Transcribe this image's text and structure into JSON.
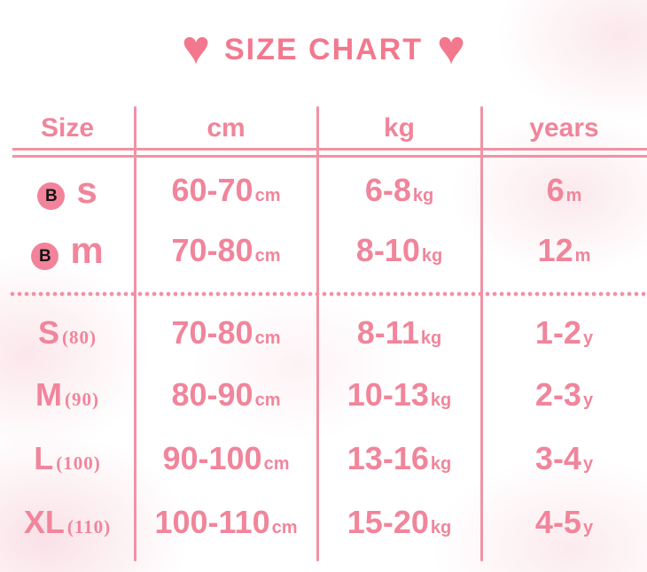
{
  "title": {
    "text": "SIZE CHART",
    "heart_left": "♥",
    "heart_right": "♥"
  },
  "colors": {
    "pink_text": "#f0859b",
    "heart_pink": "#f3788e",
    "line_pink": "#f192a5",
    "badge_pink": "#f2839a",
    "badge_letter": "#141414"
  },
  "table": {
    "headers": [
      "Size",
      "cm",
      "kg",
      "years"
    ],
    "rows": [
      {
        "group": "baby",
        "badge": "B",
        "size": "s",
        "size_note": "",
        "cm": "60-70",
        "cm_unit": "cm",
        "kg": "6-8",
        "kg_unit": "kg",
        "age": "6",
        "age_unit": "m"
      },
      {
        "group": "baby",
        "badge": "B",
        "size": "m",
        "size_note": "",
        "cm": "70-80",
        "cm_unit": "cm",
        "kg": "8-10",
        "kg_unit": "kg",
        "age": "12",
        "age_unit": "m"
      },
      {
        "group": "kids",
        "size": "S",
        "size_note": "(80)",
        "cm": "70-80",
        "cm_unit": "cm",
        "kg": "8-11",
        "kg_unit": "kg",
        "age": "1-2",
        "age_unit": "y"
      },
      {
        "group": "kids",
        "size": "M",
        "size_note": "(90)",
        "cm": "80-90",
        "cm_unit": "cm",
        "kg": "10-13",
        "kg_unit": "kg",
        "age": "2-3",
        "age_unit": "y"
      },
      {
        "group": "kids",
        "size": "L",
        "size_note": "(100)",
        "cm": "90-100",
        "cm_unit": "cm",
        "kg": "13-16",
        "kg_unit": "kg",
        "age": "3-4",
        "age_unit": "y"
      },
      {
        "group": "kids",
        "size": "XL",
        "size_note": "(110)",
        "cm": "100-110",
        "cm_unit": "cm",
        "kg": "15-20",
        "kg_unit": "kg",
        "age": "4-5",
        "age_unit": "y"
      }
    ]
  },
  "chart_data": {
    "type": "table",
    "title": "SIZE CHART",
    "columns": [
      "Size",
      "cm",
      "kg",
      "years"
    ],
    "rows": [
      [
        "B s",
        "60-70cm",
        "6-8kg",
        "6m"
      ],
      [
        "B m",
        "70-80cm",
        "8-10kg",
        "12m"
      ],
      [
        "S (80)",
        "70-80cm",
        "8-11kg",
        "1-2y"
      ],
      [
        "M (90)",
        "80-90cm",
        "10-13kg",
        "2-3y"
      ],
      [
        "L (100)",
        "90-100cm",
        "13-16kg",
        "3-4y"
      ],
      [
        "XL (110)",
        "100-110cm",
        "15-20kg",
        "4-5y"
      ]
    ]
  }
}
